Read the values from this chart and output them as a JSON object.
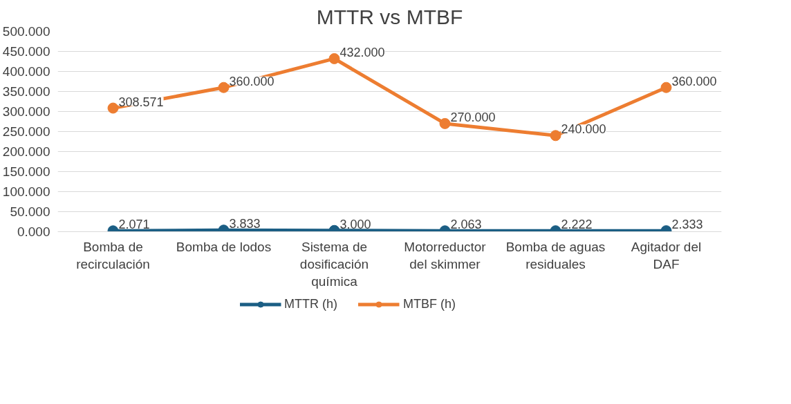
{
  "chart_data": {
    "type": "line",
    "title": "MTTR vs MTBF",
    "categories": [
      "Bomba de recirculación",
      "Bomba de lodos",
      "Sistema de dosificación química",
      "Motorreductor del skimmer",
      "Bomba de aguas residuales",
      "Agitador del DAF"
    ],
    "series": [
      {
        "name": "MTTR (h)",
        "color": "#1b5e84",
        "values": [
          2.071,
          3.833,
          3.0,
          2.063,
          2.222,
          2.333
        ],
        "value_labels": [
          "2.071",
          "3.833",
          "3.000",
          "2.063",
          "2.222",
          "2.333"
        ]
      },
      {
        "name": "MTBF (h)",
        "color": "#ed7d31",
        "values": [
          308.571,
          360.0,
          432.0,
          270.0,
          240.0,
          360.0
        ],
        "value_labels": [
          "308.571",
          "360.000",
          "432.000",
          "270.000",
          "240.000",
          "360.000"
        ]
      }
    ],
    "ylim": [
      0,
      500
    ],
    "yticks": [
      {
        "value": 0,
        "label": "0.000"
      },
      {
        "value": 50,
        "label": "50.000"
      },
      {
        "value": 100,
        "label": "100.000"
      },
      {
        "value": 150,
        "label": "150.000"
      },
      {
        "value": 200,
        "label": "200.000"
      },
      {
        "value": 250,
        "label": "250.000"
      },
      {
        "value": 300,
        "label": "300.000"
      },
      {
        "value": 350,
        "label": "350.000"
      },
      {
        "value": 400,
        "label": "400.000"
      },
      {
        "value": 450,
        "label": "450.000"
      },
      {
        "value": 500,
        "label": "500.000"
      }
    ],
    "grid": "y",
    "legend": "bottom",
    "marker": "circle",
    "line_style": "solid"
  }
}
